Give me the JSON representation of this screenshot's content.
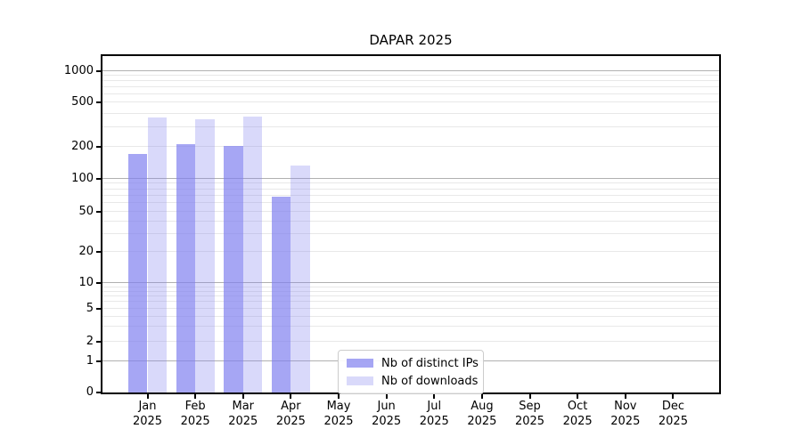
{
  "chart_data": {
    "type": "bar",
    "title": "DAPAR 2025",
    "x": {
      "categories": [
        "Jan",
        "Feb",
        "Mar",
        "Apr",
        "May",
        "Jun",
        "Jul",
        "Aug",
        "Sep",
        "Oct",
        "Nov",
        "Dec"
      ],
      "sub_label": "2025"
    },
    "series": [
      {
        "name": "Nb of distinct IPs",
        "color": "rgba(128,128,240,0.7)",
        "values": [
          170,
          210,
          205,
          68,
          0,
          0,
          0,
          0,
          0,
          0,
          0,
          0
        ]
      },
      {
        "name": "Nb of downloads",
        "color": "rgba(128,128,240,0.3)",
        "values": [
          370,
          355,
          372,
          133,
          0,
          0,
          0,
          0,
          0,
          0,
          0,
          0
        ]
      }
    ],
    "y_axis": {
      "scale": "symlog",
      "ticks": [
        0,
        1,
        2,
        5,
        10,
        20,
        50,
        100,
        200,
        500,
        1000
      ],
      "top_value": 1370
    },
    "grid": {
      "major_values": [
        1,
        10,
        100,
        1000
      ],
      "minor_values": [
        2,
        3,
        4,
        5,
        6,
        7,
        8,
        9,
        20,
        30,
        40,
        50,
        60,
        70,
        80,
        90,
        200,
        300,
        400,
        500,
        600,
        700,
        800,
        900
      ],
      "major_color": "#b0b0b0",
      "minor_color": "#e8e8e8"
    },
    "legend": {
      "position": "lower-center"
    },
    "frame_color": "#000000",
    "background": "#ffffff"
  }
}
